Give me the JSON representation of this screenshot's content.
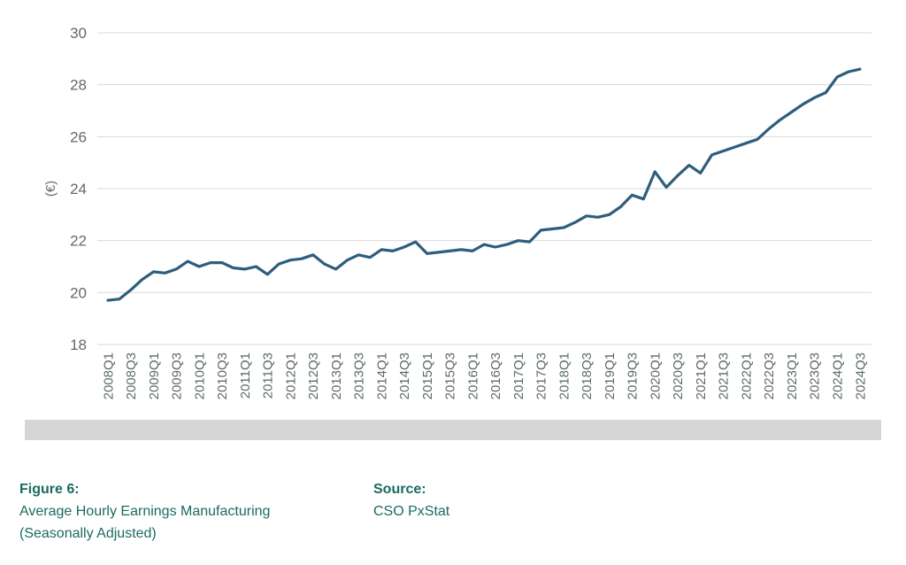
{
  "figure": {
    "label": "Figure 6:",
    "title_line1": "Average Hourly Earnings Manufacturing",
    "title_line2": "(Seasonally Adjusted)",
    "source_label": "Source:",
    "source_value": "CSO PxStat"
  },
  "colors": {
    "line": "#2e5e7e",
    "grid": "#d9d9d9",
    "axis_text": "#5f6a6a",
    "caption": "#1a6b60",
    "band": "#d6d6d6"
  },
  "chart_data": {
    "type": "line",
    "title": "",
    "xlabel": "",
    "ylabel": "(€)",
    "ylim": [
      18,
      30
    ],
    "yticks": [
      30,
      28,
      26,
      24,
      22,
      20,
      18
    ],
    "grid": true,
    "legend": false,
    "x_tick_every": 2,
    "categories": [
      "2008Q1",
      "2008Q2",
      "2008Q3",
      "2008Q4",
      "2009Q1",
      "2009Q2",
      "2009Q3",
      "2009Q4",
      "2010Q1",
      "2010Q2",
      "2010Q3",
      "2010Q4",
      "2011Q1",
      "2011Q2",
      "2011Q3",
      "2011Q4",
      "2012Q1",
      "2012Q2",
      "2012Q3",
      "2012Q4",
      "2013Q1",
      "2013Q2",
      "2013Q3",
      "2013Q4",
      "2014Q1",
      "2014Q2",
      "2014Q3",
      "2014Q4",
      "2015Q1",
      "2015Q2",
      "2015Q3",
      "2015Q4",
      "2016Q1",
      "2016Q2",
      "2016Q3",
      "2016Q4",
      "2017Q1",
      "2017Q2",
      "2017Q3",
      "2017Q4",
      "2018Q1",
      "2018Q2",
      "2018Q3",
      "2018Q4",
      "2019Q1",
      "2019Q2",
      "2019Q3",
      "2019Q4",
      "2020Q1",
      "2020Q2",
      "2020Q3",
      "2020Q4",
      "2021Q1",
      "2021Q2",
      "2021Q3",
      "2021Q4",
      "2022Q1",
      "2022Q2",
      "2022Q3",
      "2022Q4",
      "2023Q1",
      "2023Q2",
      "2023Q3",
      "2023Q4",
      "2024Q1",
      "2024Q2",
      "2024Q3"
    ],
    "values": [
      19.7,
      19.75,
      20.1,
      20.5,
      20.8,
      20.75,
      20.9,
      21.2,
      21.0,
      21.15,
      21.15,
      20.95,
      20.9,
      21.0,
      20.7,
      21.1,
      21.25,
      21.3,
      21.45,
      21.1,
      20.9,
      21.25,
      21.45,
      21.35,
      21.65,
      21.6,
      21.75,
      21.95,
      21.5,
      21.55,
      21.6,
      21.65,
      21.6,
      21.85,
      21.75,
      21.85,
      22.0,
      21.95,
      22.4,
      22.45,
      22.5,
      22.7,
      22.95,
      22.9,
      23.0,
      23.3,
      23.75,
      23.6,
      24.65,
      24.05,
      24.5,
      24.9,
      24.6,
      25.3,
      25.45,
      25.6,
      25.75,
      25.9,
      26.3,
      26.65,
      26.95,
      27.25,
      27.5,
      27.7,
      28.3,
      28.5,
      28.6
    ]
  }
}
